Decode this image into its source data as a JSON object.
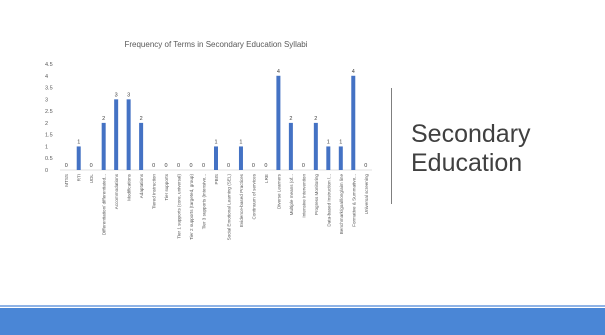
{
  "slide": {
    "title_line1": "Secondary",
    "title_line2": "Education",
    "accent_color": "#4a86d6"
  },
  "chart_data": {
    "type": "bar",
    "title": "Frequency of Terms in Secondary Education Syllabi",
    "xlabel": "",
    "ylabel": "",
    "ylim": [
      0,
      4.5
    ],
    "yticks": [
      "0",
      "0.5",
      "1",
      "1.5",
      "2",
      "2.5",
      "3",
      "3.5",
      "4",
      "4.5"
    ],
    "grid": false,
    "legend": "none",
    "bar_color": "#4472c4",
    "categories": [
      "MTSS",
      "RTI",
      "UDL",
      "Differentiation/ differentiated...",
      "Accommodations",
      "Modifications",
      "Adaptations",
      "Tiered instruction",
      "Tier supports",
      "Tier 1 supports (core, universal)",
      "Tier 2 supports (targeted, group)",
      "Tier 3 supports (intensive...",
      "PBIS",
      "Social Emotional Learning (SEL)",
      "Evidence-based Practices",
      "Continuum of services",
      "LRE",
      "Diverse Learners",
      "Multiple means (of...",
      "Intensive Intervention",
      "Progress Monitoring",
      "Data-based Instruction /...",
      "Benchmark/goal/long/aim line",
      "Formative & Summative...",
      "Universal screening"
    ],
    "values": [
      0,
      1,
      0,
      2,
      3,
      3,
      2,
      0,
      0,
      0,
      0,
      0,
      1,
      0,
      1,
      0,
      0,
      4,
      2,
      0,
      2,
      1,
      1,
      4,
      0
    ],
    "data_labels": [
      "0",
      "1",
      "0",
      "2",
      "3",
      "3",
      "2",
      "0",
      "0",
      "0",
      "0",
      "0",
      "1",
      "0",
      "1",
      "0",
      "0",
      "4",
      "2",
      "0",
      "2",
      "1",
      "1",
      "4",
      "0"
    ]
  }
}
